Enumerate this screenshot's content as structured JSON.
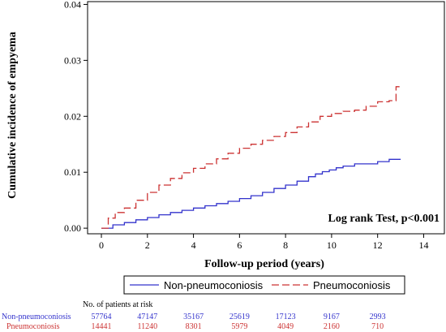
{
  "chart_data": {
    "type": "line",
    "title": "",
    "xlabel": "Follow-up period (years)",
    "ylabel": "Cumulative incidence of empyema",
    "xlim": [
      -0.6,
      14.9
    ],
    "ylim": [
      -0.001,
      0.0405
    ],
    "x_ticks": [
      0,
      2,
      4,
      6,
      8,
      10,
      12,
      14
    ],
    "y_ticks": [
      0.0,
      0.01,
      0.02,
      0.03,
      0.04
    ],
    "y_tick_labels": [
      "0.00",
      "0.01",
      "0.02",
      "0.03",
      "0.04"
    ],
    "annotation": "Log rank Test, p<0.001",
    "legend_position": "bottom",
    "series": [
      {
        "name": "Non-pneumoconiosis",
        "color": "#3333cc",
        "dash": "solid",
        "x": [
          0,
          0.5,
          1,
          1.5,
          2,
          2.5,
          3,
          3.5,
          4,
          4.5,
          5,
          5.5,
          6,
          6.5,
          7,
          7.5,
          8,
          8.5,
          9,
          9.3,
          9.6,
          9.9,
          10.2,
          10.5,
          11,
          11.5,
          12,
          12.5,
          13
        ],
        "y": [
          0,
          0.0006,
          0.001,
          0.0015,
          0.0019,
          0.0024,
          0.0028,
          0.0032,
          0.0036,
          0.004,
          0.0044,
          0.0048,
          0.0053,
          0.0058,
          0.0064,
          0.0071,
          0.0077,
          0.0084,
          0.0092,
          0.0097,
          0.0101,
          0.0104,
          0.0108,
          0.0111,
          0.0115,
          0.0115,
          0.0119,
          0.0123,
          0.0123
        ]
      },
      {
        "name": "Pneumoconiosis",
        "color": "#cc3333",
        "dash": "dashed",
        "x": [
          0,
          0.3,
          0.6,
          1,
          1.5,
          2,
          2.5,
          3,
          3.5,
          4,
          4.5,
          5,
          5.5,
          6,
          6.5,
          7,
          7.5,
          8,
          8.5,
          9,
          9.5,
          10,
          10.5,
          11,
          11.5,
          12,
          12.5,
          12.8,
          13
        ],
        "y": [
          0,
          0.0018,
          0.0028,
          0.0036,
          0.005,
          0.0064,
          0.0077,
          0.0089,
          0.0099,
          0.0107,
          0.0115,
          0.0124,
          0.0134,
          0.0143,
          0.015,
          0.0157,
          0.0164,
          0.0171,
          0.0181,
          0.019,
          0.02,
          0.0205,
          0.0209,
          0.0211,
          0.0218,
          0.0226,
          0.0228,
          0.0253,
          0.0253
        ]
      }
    ],
    "risk_table": {
      "title": "No. of patients at risk",
      "rows": [
        {
          "name": "Non-pneumoconiosis",
          "color": "#3333cc",
          "values": [
            "57764",
            "47147",
            "35167",
            "25619",
            "17123",
            "9167",
            "2993"
          ]
        },
        {
          "name": "Pneumoconiosis",
          "color": "#cc3333",
          "values": [
            "14441",
            "11240",
            "8301",
            "5979",
            "4049",
            "2160",
            "710"
          ]
        }
      ]
    }
  }
}
